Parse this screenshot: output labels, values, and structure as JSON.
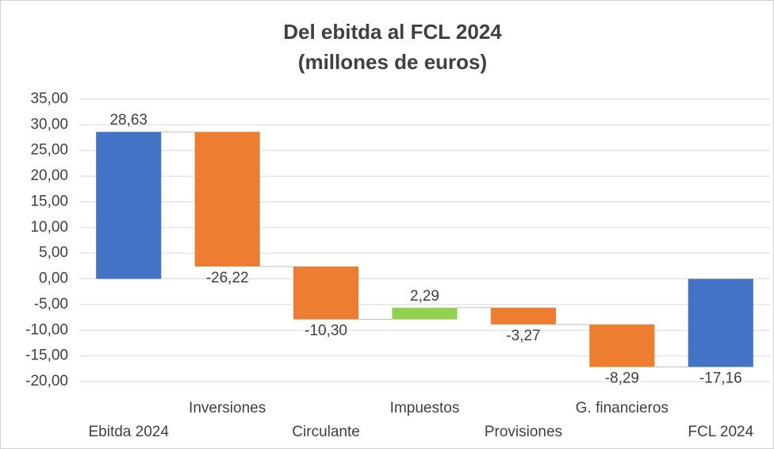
{
  "chart_data": {
    "type": "waterfall",
    "title": "Del ebitda al FCL 2024",
    "subtitle": "(millones de euros)",
    "categories": [
      "Ebitda 2024",
      "Inversiones",
      "Circulante",
      "Impuestos",
      "Provisiones",
      "G. financieros",
      "FCL 2024"
    ],
    "values": [
      28.63,
      -26.22,
      -10.3,
      2.29,
      -3.27,
      -8.29,
      -17.16
    ],
    "value_labels": [
      "28,63",
      "-26,22",
      "-10,30",
      "2,29",
      "-3,27",
      "-8,29",
      "-17,16"
    ],
    "measures": [
      "total",
      "relative",
      "relative",
      "relative",
      "relative",
      "relative",
      "total"
    ],
    "colors": [
      "#4472c4",
      "#ed7d31",
      "#ed7d31",
      "#92d050",
      "#ed7d31",
      "#ed7d31",
      "#4472c4"
    ],
    "ylim": [
      -20,
      35
    ],
    "yticks": [
      {
        "value": -20,
        "label": "-20,00"
      },
      {
        "value": -15,
        "label": "-15,00"
      },
      {
        "value": -10,
        "label": "-10,00"
      },
      {
        "value": -5,
        "label": "-5,00"
      },
      {
        "value": 0,
        "label": "0,00"
      },
      {
        "value": 5,
        "label": "5,00"
      },
      {
        "value": 10,
        "label": "10,00"
      },
      {
        "value": 15,
        "label": "15,00"
      },
      {
        "value": 20,
        "label": "20,00"
      },
      {
        "value": 25,
        "label": "25,00"
      },
      {
        "value": 30,
        "label": "30,00"
      },
      {
        "value": 35,
        "label": "35,00"
      }
    ],
    "grid": true
  }
}
